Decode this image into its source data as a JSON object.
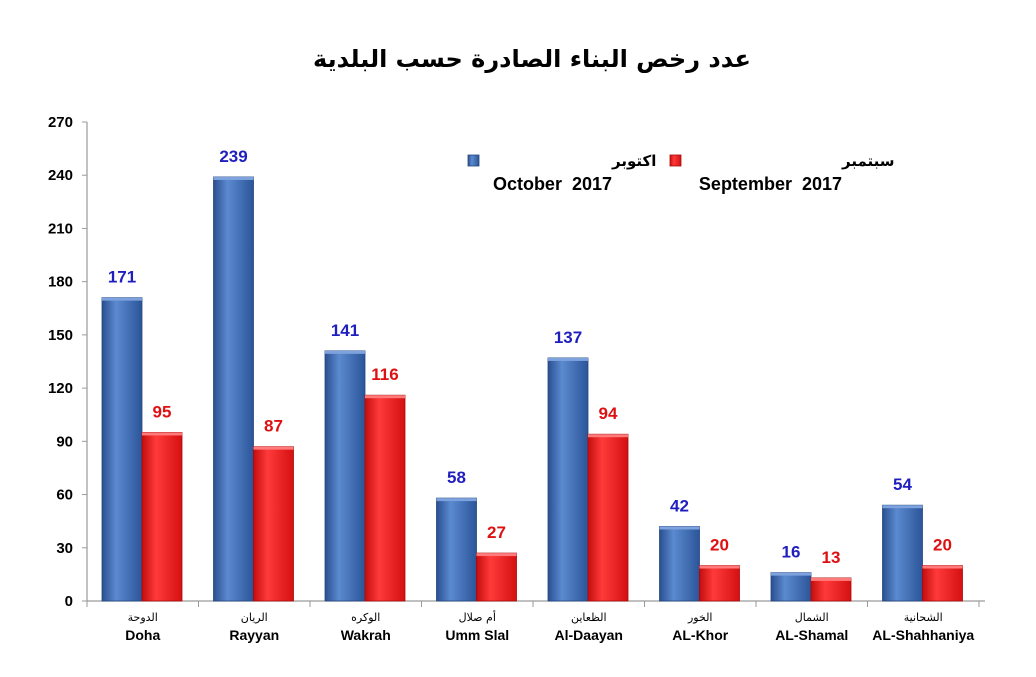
{
  "chart_data": {
    "type": "bar",
    "title": "عدد رخص البناء الصادرة حسب البلدية",
    "ylim": [
      0,
      270
    ],
    "yticks": [
      0,
      30,
      60,
      90,
      120,
      150,
      180,
      210,
      240,
      270
    ],
    "categories": [
      {
        "ar": "الدوحة",
        "en": "Doha"
      },
      {
        "ar": "الريان",
        "en": "Rayyan"
      },
      {
        "ar": "الوكره",
        "en": "Wakrah"
      },
      {
        "ar": "أم صلال",
        "en": "Umm Slal"
      },
      {
        "ar": "الظعاين",
        "en": "Al-Daayan"
      },
      {
        "ar": "الخور",
        "en": "AL-Khor"
      },
      {
        "ar": "الشمال",
        "en": "AL-Shamal"
      },
      {
        "ar": "الشحانية",
        "en": "AL-Shahhaniya"
      }
    ],
    "series": [
      {
        "name_ar": "اكتوبر",
        "name_en": "October  2017",
        "color": "#3a67b0",
        "label_color": "#1f1fbf",
        "values": [
          171,
          239,
          141,
          58,
          137,
          42,
          16,
          54
        ]
      },
      {
        "name_ar": "سبتمبر",
        "name_en": "September  2017",
        "color": "#ee1c1c",
        "label_color": "#dd1111",
        "values": [
          95,
          87,
          116,
          27,
          94,
          20,
          13,
          20
        ]
      }
    ],
    "legend_position": "top-right",
    "grid": false
  }
}
